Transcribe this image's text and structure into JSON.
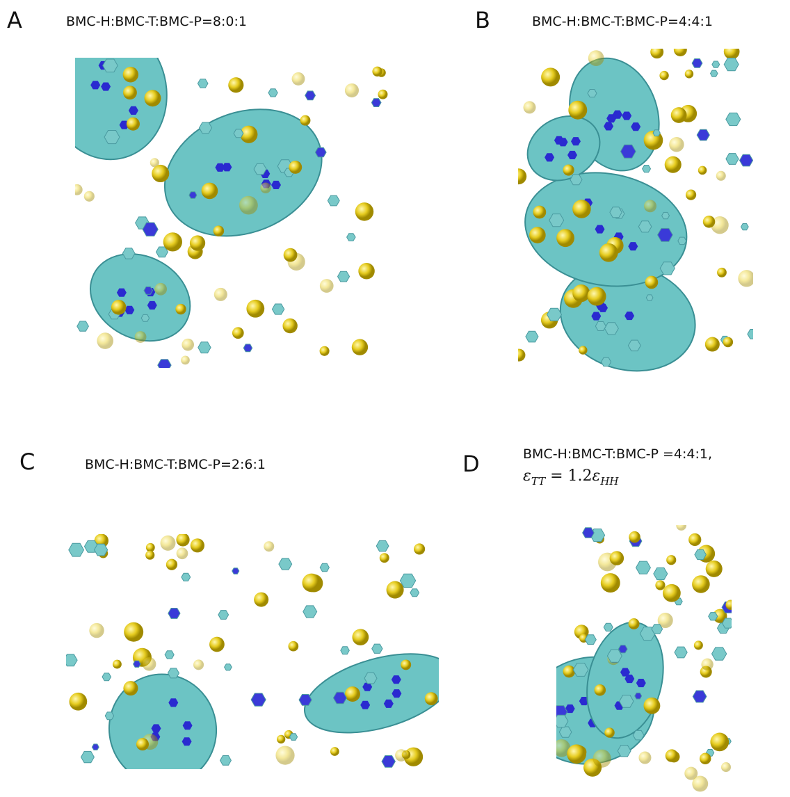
{
  "panels": [
    {
      "label": "A",
      "caption": "BMC-H:BMC-T:BMC-P=8:0:1"
    },
    {
      "label": "B",
      "caption": "BMC-H:BMC-T:BMC-P=4:4:1"
    },
    {
      "label": "C",
      "caption": "BMC-H:BMC-T:BMC-P=2:6:1"
    },
    {
      "label": "D",
      "caption": "BMC-H:BMC-T:BMC-P =4:4:1,",
      "equation": [
        "ε",
        "TT",
        " = 1.2",
        "ε",
        "HH"
      ]
    }
  ]
}
